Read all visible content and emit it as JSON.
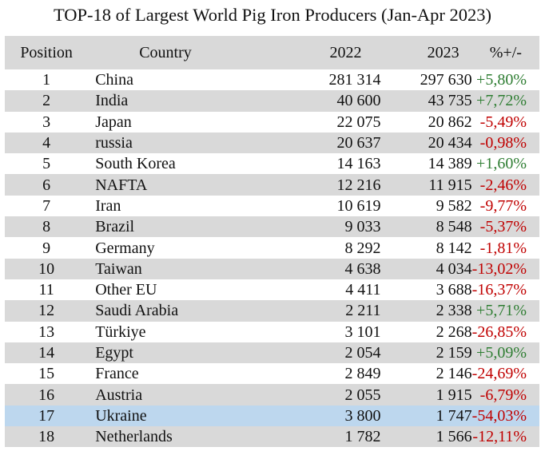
{
  "title": "TOP-18 of Largest World Pig Iron Producers (Jan-Apr 2023)",
  "columns": {
    "position": "Position",
    "country": "Country",
    "y2022": "2022",
    "y2023": "2023",
    "change": "%+/-"
  },
  "colors": {
    "header_bg": "#d9d9d9",
    "shade_bg": "#d9d9d9",
    "highlight_bg": "#bdd7ee",
    "positive": "#2e7d32",
    "negative": "#c00000"
  },
  "rows": [
    {
      "position": "1",
      "country": "China",
      "y2022": "281 314",
      "y2023": "297 630",
      "change": "+5,80%",
      "trend": "pos",
      "style": ""
    },
    {
      "position": "2",
      "country": "India",
      "y2022": "40 600",
      "y2023": "43 735",
      "change": "+7,72%",
      "trend": "pos",
      "style": "shade"
    },
    {
      "position": "3",
      "country": "Japan",
      "y2022": "22 075",
      "y2023": "20 862",
      "change": "-5,49%",
      "trend": "neg",
      "style": ""
    },
    {
      "position": "4",
      "country": "russia",
      "y2022": "20 637",
      "y2023": "20 434",
      "change": "-0,98%",
      "trend": "neg",
      "style": "shade"
    },
    {
      "position": "5",
      "country": "South Korea",
      "y2022": "14 163",
      "y2023": "14 389",
      "change": "+1,60%",
      "trend": "pos",
      "style": ""
    },
    {
      "position": "6",
      "country": "NAFTA",
      "y2022": "12 216",
      "y2023": "11 915",
      "change": "-2,46%",
      "trend": "neg",
      "style": "shade"
    },
    {
      "position": "7",
      "country": "Iran",
      "y2022": "10 619",
      "y2023": "9 582",
      "change": "-9,77%",
      "trend": "neg",
      "style": ""
    },
    {
      "position": "8",
      "country": "Brazil",
      "y2022": "9 033",
      "y2023": "8 548",
      "change": "-5,37%",
      "trend": "neg",
      "style": "shade"
    },
    {
      "position": "9",
      "country": "Germany",
      "y2022": "8 292",
      "y2023": "8 142",
      "change": "-1,81%",
      "trend": "neg",
      "style": ""
    },
    {
      "position": "10",
      "country": "Taiwan",
      "y2022": "4 638",
      "y2023": "4 034",
      "change": "-13,02%",
      "trend": "neg",
      "style": "shade"
    },
    {
      "position": "11",
      "country": "Other EU",
      "y2022": "4 411",
      "y2023": "3 688",
      "change": "-16,37%",
      "trend": "neg",
      "style": ""
    },
    {
      "position": "12",
      "country": "Saudi Arabia",
      "y2022": "2 211",
      "y2023": "2 338",
      "change": "+5,71%",
      "trend": "pos",
      "style": "shade"
    },
    {
      "position": "13",
      "country": "Türkiye",
      "y2022": "3 101",
      "y2023": "2 268",
      "change": "-26,85%",
      "trend": "neg",
      "style": ""
    },
    {
      "position": "14",
      "country": "Egypt",
      "y2022": "2 054",
      "y2023": "2 159",
      "change": "+5,09%",
      "trend": "pos",
      "style": "shade"
    },
    {
      "position": "15",
      "country": "France",
      "y2022": "2 849",
      "y2023": "2 146",
      "change": "-24,69%",
      "trend": "neg",
      "style": ""
    },
    {
      "position": "16",
      "country": "Austria",
      "y2022": "2 055",
      "y2023": "1 915",
      "change": "-6,79%",
      "trend": "neg",
      "style": "shade"
    },
    {
      "position": "17",
      "country": "Ukraine",
      "y2022": "3 800",
      "y2023": "1 747",
      "change": "-54,03%",
      "trend": "neg",
      "style": "hl"
    },
    {
      "position": "18",
      "country": "Netherlands",
      "y2022": "1 782",
      "y2023": "1 566",
      "change": "-12,11%",
      "trend": "neg",
      "style": "shade"
    }
  ]
}
